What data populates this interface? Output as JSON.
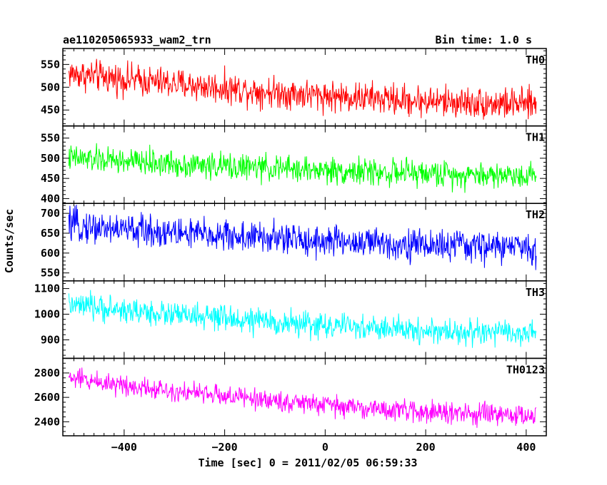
{
  "title_left": "ae110205065933_wam2_trn",
  "title_right": "Bin time: 1.0 s",
  "xlabel": "Time [sec] 0 = 2011/02/05 06:59:33",
  "ylabel": "Counts/sec",
  "chart_data": {
    "type": "line",
    "x_range": [
      -510,
      420
    ],
    "xlim": [
      -522,
      440
    ],
    "x_ticks": [
      -400,
      -200,
      0,
      200,
      400
    ],
    "x_tick_labels": [
      "−400",
      "−200",
      "0",
      "200",
      "400"
    ],
    "panels": [
      {
        "name": "TH0",
        "color": "#ff0000",
        "ylim": [
          415,
          585
        ],
        "y_ticks": [
          450,
          500,
          550
        ],
        "start_level": 530,
        "end_level": 463,
        "noise_amplitude": 22
      },
      {
        "name": "TH1",
        "color": "#00ff00",
        "ylim": [
          388,
          580
        ],
        "y_ticks": [
          400,
          450,
          500,
          550
        ],
        "start_level": 500,
        "end_level": 458,
        "noise_amplitude": 21
      },
      {
        "name": "TH2",
        "color": "#0000ff",
        "ylim": [
          530,
          725
        ],
        "y_ticks": [
          550,
          600,
          650,
          700
        ],
        "start_level": 670,
        "end_level": 615,
        "noise_amplitude": 26
      },
      {
        "name": "TH3",
        "color": "#00ffff",
        "ylim": [
          828,
          1130
        ],
        "y_ticks": [
          900,
          1000,
          1100
        ],
        "start_level": 1035,
        "end_level": 925,
        "noise_amplitude": 32
      },
      {
        "name": "TH0123",
        "color": "#ff00ff",
        "ylim": [
          2285,
          2920
        ],
        "y_ticks": [
          2400,
          2600,
          2800
        ],
        "start_level": 2760,
        "end_level": 2450,
        "noise_amplitude": 55
      }
    ]
  }
}
